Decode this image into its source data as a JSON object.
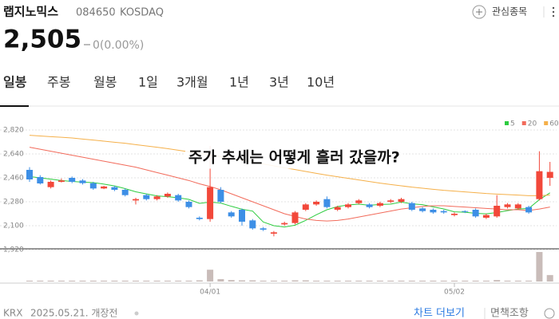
{
  "header": {
    "name": "랩지노믹스",
    "code": "084650",
    "market": "KOSDAQ",
    "watch": "관심종목",
    "price": "2,505",
    "change": "0(0.00%)"
  },
  "tabs": [
    "일봉",
    "주봉",
    "월봉",
    "1일",
    "3개월",
    "1년",
    "3년",
    "10년"
  ],
  "footer": {
    "exchange": "KRX",
    "date": "2025.05.21. 개장전",
    "more": "차트 더보기",
    "disclaimer": "면책조항"
  },
  "chart_data": {
    "type": "candlestick",
    "annotation": "주가 추세는 어떻게 흘러 갔을까?",
    "categories": [
      null,
      null,
      null,
      null,
      null,
      null,
      null,
      null,
      null,
      null,
      null,
      null,
      null,
      null,
      null,
      null,
      null,
      "04/01",
      null,
      null,
      null,
      null,
      null,
      null,
      null,
      null,
      null,
      null,
      null,
      null,
      null,
      null,
      null,
      null,
      null,
      null,
      null,
      null,
      null,
      null,
      "05/02",
      null,
      null,
      null,
      null,
      null,
      null,
      null,
      null,
      null
    ],
    "open": [
      2520,
      2466,
      2390,
      2430,
      2460,
      2440,
      2420,
      2380,
      2390,
      2370,
      2290,
      2330,
      2300,
      2320,
      2330,
      2280,
      2160,
      2150,
      2370,
      2200,
      2220,
      2140,
      2080,
      2040,
      2110,
      2120,
      2220,
      2260,
      2300,
      2220,
      2240,
      2270,
      2260,
      2250,
      2280,
      2280,
      2270,
      2230,
      2220,
      2210,
      2180,
      2210,
      2220,
      2160,
      2170,
      2240,
      2230,
      2240,
      2300,
      2460
    ],
    "high": [
      2540,
      2480,
      2440,
      2455,
      2470,
      2450,
      2430,
      2400,
      2400,
      2380,
      2310,
      2340,
      2330,
      2350,
      2340,
      2290,
      2170,
      2700,
      2390,
      2210,
      2230,
      2150,
      2090,
      2060,
      2130,
      2210,
      2270,
      2290,
      2320,
      2250,
      2270,
      2300,
      2270,
      2280,
      2300,
      2310,
      2280,
      2240,
      2230,
      2220,
      2200,
      2215,
      2230,
      2190,
      2330,
      2270,
      2270,
      2250,
      2660,
      2580
    ],
    "low": [
      2430,
      2410,
      2380,
      2425,
      2420,
      2410,
      2370,
      2375,
      2360,
      2320,
      2260,
      2290,
      2290,
      2310,
      2280,
      2230,
      2140,
      2130,
      2270,
      2160,
      2100,
      2070,
      2060,
      2020,
      2100,
      2110,
      2210,
      2250,
      2230,
      2210,
      2230,
      2260,
      2230,
      2240,
      2270,
      2270,
      2210,
      2200,
      2190,
      2190,
      2170,
      2195,
      2160,
      2150,
      2160,
      2230,
      2220,
      2190,
      2290,
      2400
    ],
    "close": [
      2448,
      2418,
      2430,
      2440,
      2430,
      2420,
      2380,
      2395,
      2370,
      2330,
      2300,
      2300,
      2320,
      2340,
      2290,
      2240,
      2150,
      2390,
      2280,
      2170,
      2130,
      2080,
      2070,
      2050,
      2120,
      2200,
      2260,
      2280,
      2240,
      2240,
      2260,
      2290,
      2240,
      2270,
      2290,
      2300,
      2220,
      2210,
      2200,
      2200,
      2190,
      2205,
      2170,
      2180,
      2250,
      2260,
      2260,
      2200,
      2510,
      2505
    ],
    "volume": [
      3,
      3,
      3,
      3,
      3,
      3,
      3,
      3,
      3,
      3,
      3,
      3,
      3,
      3,
      3,
      3,
      4,
      40,
      8,
      5,
      4,
      4,
      3,
      3,
      3,
      4,
      4,
      3,
      3,
      3,
      3,
      3,
      3,
      3,
      3,
      3,
      3,
      3,
      3,
      3,
      3,
      3,
      3,
      3,
      5,
      3,
      3,
      3,
      100,
      22
    ],
    "volume_lim": [
      0,
      100
    ],
    "up_color": "#f2483a",
    "down_color": "#3d8fe6",
    "volume_color": "#c9bcb9",
    "series": [
      {
        "name": "5",
        "color": "#2ecc40",
        "values": [
          2470,
          2460,
          2450,
          2440,
          2433,
          2428,
          2424,
          2413,
          2399,
          2379,
          2355,
          2339,
          2324,
          2318,
          2310,
          2298,
          2268,
          2278,
          2270,
          2246,
          2224,
          2210,
          2128,
          2100,
          2090,
          2104,
          2140,
          2182,
          2220,
          2244,
          2256,
          2262,
          2254,
          2260,
          2262,
          2278,
          2264,
          2258,
          2242,
          2226,
          2204,
          2201,
          2193,
          2189,
          2199,
          2213,
          2225,
          2230,
          2296,
          2347
        ]
      },
      {
        "name": "20",
        "color": "#f26b5b",
        "values": [
          2690,
          2675,
          2660,
          2645,
          2630,
          2615,
          2600,
          2585,
          2570,
          2555,
          2540,
          2520,
          2500,
          2480,
          2460,
          2440,
          2415,
          2395,
          2370,
          2340,
          2310,
          2280,
          2250,
          2220,
          2190,
          2170,
          2150,
          2140,
          2135,
          2140,
          2150,
          2165,
          2180,
          2195,
          2210,
          2225,
          2235,
          2245,
          2250,
          2250,
          2245,
          2240,
          2235,
          2230,
          2225,
          2220,
          2220,
          2215,
          2225,
          2240
        ]
      },
      {
        "name": "60",
        "color": "#f5b04a",
        "values": [
          2780,
          2775,
          2770,
          2765,
          2760,
          2752,
          2744,
          2736,
          2728,
          2720,
          2710,
          2700,
          2690,
          2680,
          2668,
          2656,
          2644,
          2632,
          2620,
          2606,
          2592,
          2578,
          2564,
          2550,
          2536,
          2522,
          2508,
          2494,
          2480,
          2468,
          2456,
          2444,
          2432,
          2420,
          2410,
          2400,
          2390,
          2382,
          2374,
          2366,
          2360,
          2354,
          2348,
          2342,
          2338,
          2334,
          2330,
          2326,
          2326,
          2330
        ]
      }
    ],
    "ylim": [
      1926,
      2862
    ],
    "yticks": [
      {
        "value": 1920,
        "label": "1,920"
      },
      {
        "value": 2100,
        "label": "2,100"
      },
      {
        "value": 2280,
        "label": "2,280"
      },
      {
        "value": 2460,
        "label": "2,460"
      },
      {
        "value": 2640,
        "label": "2,640"
      },
      {
        "value": 2820,
        "label": "2,820"
      }
    ],
    "grid": true
  }
}
